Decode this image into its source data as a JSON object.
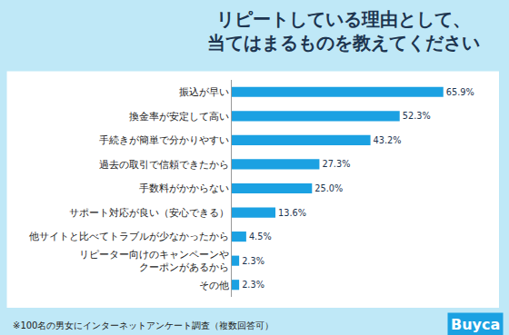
{
  "chart_data": {
    "type": "bar",
    "orientation": "horizontal",
    "title": "リピートしている理由として、\n当てはまるものを教えてください",
    "categories": [
      "振込が早い",
      "換金率が安定して高い",
      "手続きが簡単で分かりやすい",
      "過去の取引で信頼できたから",
      "手数料がかからない",
      "サポート対応が良い（安心できる）",
      "他サイトと比べてトラブルが少なかったから",
      "リピーター向けのキャンペーンや\nクーポンがあるから",
      "その他"
    ],
    "values": [
      65.9,
      52.3,
      43.2,
      27.3,
      25.0,
      13.6,
      4.5,
      2.3,
      2.3
    ],
    "value_labels": [
      "65.9%",
      "52.3%",
      "43.2%",
      "27.3%",
      "25.0%",
      "13.6%",
      "4.5%",
      "2.3%",
      "2.3%"
    ],
    "color": "#1ba1e2",
    "data_labels": true,
    "tick_labels": "y",
    "grid": false,
    "annotations": [
      "※100名の男女にインターネットアンケート調査（複数回答可）",
      "Buyca"
    ]
  }
}
